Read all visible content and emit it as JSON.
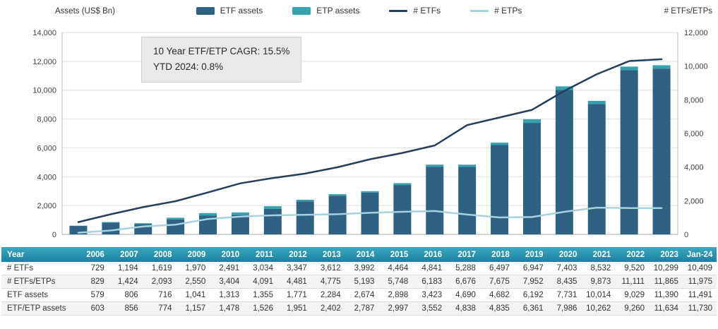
{
  "chart": {
    "left_axis_title": "Assets (US$ Bn)",
    "right_axis_title": "# ETFs/ETPs"
  },
  "legend": [
    {
      "label": "ETF assets",
      "type": "bar",
      "color": "#2f6282"
    },
    {
      "label": "ETP assets",
      "type": "bar",
      "color": "#35a2b0"
    },
    {
      "label": "# ETFs",
      "type": "line",
      "color": "#243f5c"
    },
    {
      "label": "# ETPs",
      "type": "line",
      "color": "#a5d3de"
    }
  ],
  "annotation": {
    "line1": "10 Year ETF/ETP CAGR: 15.5%",
    "line2": "YTD 2024: 0.8%"
  },
  "chart_data": {
    "type": "bar",
    "subtype": "stacked bars with overlay lines",
    "categories": [
      "2006",
      "2007",
      "2008",
      "2009",
      "2010",
      "2011",
      "2012",
      "2013",
      "2014",
      "2015",
      "2016",
      "2017",
      "2018",
      "2019",
      "2020",
      "2021",
      "2022",
      "2023",
      "Jan-24"
    ],
    "series": [
      {
        "name": "ETF assets",
        "type": "bar",
        "axis": "left",
        "values": [
          579,
          806,
          716,
          1041,
          1313,
          1355,
          1771,
          2284,
          2674,
          2898,
          3423,
          4690,
          4682,
          6192,
          7731,
          10014,
          9029,
          11390,
          11491
        ]
      },
      {
        "name": "ETF/ETP assets",
        "type": "bar-total",
        "axis": "left",
        "values": [
          603,
          856,
          774,
          1157,
          1478,
          1526,
          1951,
          2402,
          2787,
          2997,
          3552,
          4838,
          4835,
          6361,
          7986,
          10262,
          9260,
          11634,
          11730
        ]
      },
      {
        "name": "ETP assets",
        "type": "bar-segment",
        "axis": "left",
        "values": [
          24,
          50,
          58,
          116,
          165,
          171,
          180,
          118,
          113,
          99,
          129,
          148,
          153,
          169,
          255,
          248,
          231,
          244,
          239
        ]
      },
      {
        "name": "# ETFs",
        "type": "line",
        "axis": "right",
        "values": [
          729,
          1194,
          1619,
          1970,
          2491,
          3034,
          3347,
          3612,
          3992,
          4464,
          4841,
          5288,
          6497,
          6947,
          7403,
          8532,
          9520,
          10299,
          10409
        ]
      },
      {
        "name": "# ETFs/ETPs",
        "type": "reference",
        "axis": "right",
        "values": [
          829,
          1424,
          2093,
          2550,
          3404,
          4091,
          4481,
          4775,
          5193,
          5748,
          6183,
          6676,
          7675,
          7952,
          8435,
          9873,
          11111,
          11865,
          11975
        ]
      },
      {
        "name": "# ETPs",
        "type": "line",
        "axis": "right",
        "values": [
          100,
          230,
          474,
          580,
          913,
          1057,
          1134,
          1163,
          1201,
          1284,
          1342,
          1388,
          1178,
          1005,
          1032,
          1341,
          1591,
          1566,
          1566
        ]
      }
    ],
    "title": "",
    "xlabel": "",
    "left_axis": {
      "title": "Assets (US$ Bn)",
      "min": 0,
      "max": 14000,
      "step": 2000
    },
    "right_axis": {
      "title": "# ETFs/ETPs",
      "min": 0,
      "max": 12000,
      "step": 2000
    },
    "grid": true,
    "legend_position": "top-center"
  },
  "table": {
    "year_header": "Year",
    "columns": [
      "2006",
      "2007",
      "2008",
      "2009",
      "2010",
      "2011",
      "2012",
      "2013",
      "2014",
      "2015",
      "2016",
      "2017",
      "2018",
      "2019",
      "2020",
      "2021",
      "2022",
      "2023",
      "Jan-24"
    ],
    "rows": [
      {
        "label": "# ETFs",
        "values": [
          "729",
          "1,194",
          "1,619",
          "1,970",
          "2,491",
          "3,034",
          "3,347",
          "3,612",
          "3,992",
          "4,464",
          "4,841",
          "5,288",
          "6,497",
          "6,947",
          "7,403",
          "8,532",
          "9,520",
          "10,299",
          "10,409"
        ]
      },
      {
        "label": "# ETFs/ETPs",
        "values": [
          "829",
          "1,424",
          "2,093",
          "2,550",
          "3,404",
          "4,091",
          "4,481",
          "4,775",
          "5,193",
          "5,748",
          "6,183",
          "6,676",
          "7,675",
          "7,952",
          "8,435",
          "9,873",
          "11,111",
          "11,865",
          "11,975"
        ]
      },
      {
        "label": "ETF assets",
        "values": [
          "579",
          "806",
          "716",
          "1,041",
          "1,313",
          "1,355",
          "1,771",
          "2,284",
          "2,674",
          "2,898",
          "3,423",
          "4,690",
          "4,682",
          "6,192",
          "7,731",
          "10,014",
          "9,029",
          "11,390",
          "11,491"
        ]
      },
      {
        "label": "ETF/ETP assets",
        "values": [
          "603",
          "856",
          "774",
          "1,157",
          "1,478",
          "1,526",
          "1,951",
          "2,402",
          "2,787",
          "2,997",
          "3,552",
          "4,838",
          "4,835",
          "6,361",
          "7,986",
          "10,262",
          "9,260",
          "11,634",
          "11,730"
        ]
      }
    ]
  },
  "colors": {
    "etf_bar": "#2f6282",
    "etp_bar": "#35a2b0",
    "etfs_line": "#243f5c",
    "etps_line": "#a5d3de",
    "table_header_top": "#3fa6bd",
    "table_header_bottom": "#1a82a2",
    "gridline": "#dedede",
    "axis_line": "#b8b8b8"
  }
}
